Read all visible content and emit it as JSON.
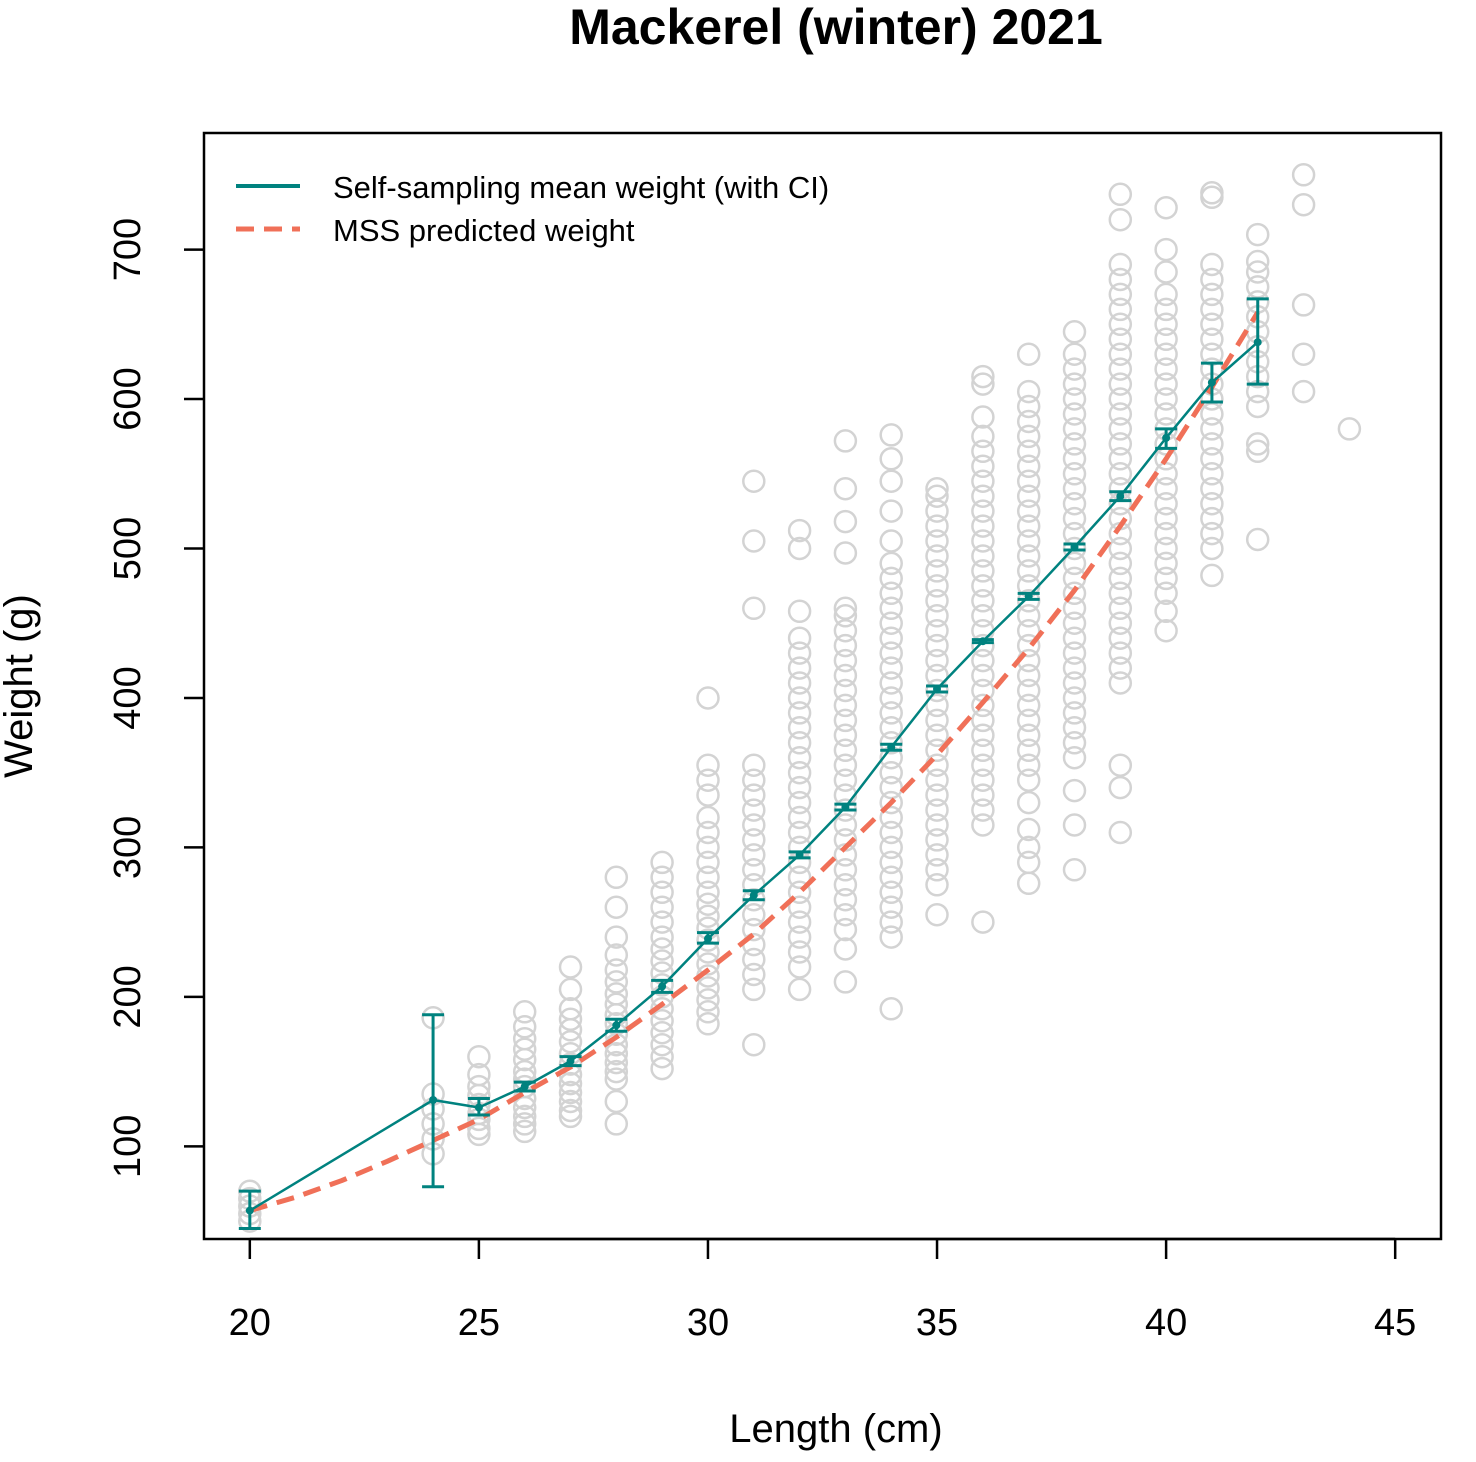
{
  "chart_data": {
    "type": "scatter",
    "title": "Mackerel (winter) 2021",
    "xlabel": "Length (cm)",
    "ylabel": "Weight (g)",
    "xlim": [
      19,
      46
    ],
    "ylim": [
      38,
      778
    ],
    "xticks": [
      20,
      25,
      30,
      35,
      40,
      45
    ],
    "yticks": [
      100,
      200,
      300,
      400,
      500,
      600,
      700
    ],
    "legend": {
      "placement": "top-left",
      "entries": [
        {
          "label": "Self-sampling mean weight (with CI)",
          "style": "solid",
          "color": "#00827F"
        },
        {
          "label": "MSS predicted weight",
          "style": "dashed",
          "color": "#F07058"
        }
      ]
    },
    "colors": {
      "points": "#D3D3D3",
      "mean": "#00827F",
      "predicted": "#F07058"
    },
    "observations": [
      {
        "x": 20,
        "y": [
          50,
          55,
          60,
          65,
          70
        ]
      },
      {
        "x": 24,
        "y": [
          95,
          105,
          115,
          125,
          135,
          186
        ]
      },
      {
        "x": 25,
        "y": [
          108,
          112,
          118,
          122,
          128,
          134,
          140,
          148,
          160
        ]
      },
      {
        "x": 26,
        "y": [
          110,
          115,
          120,
          126,
          132,
          140,
          145,
          150,
          158,
          165,
          172,
          180,
          190
        ]
      },
      {
        "x": 27,
        "y": [
          120,
          124,
          130,
          136,
          142,
          148,
          155,
          162,
          170,
          178,
          185,
          192,
          205,
          220
        ]
      },
      {
        "x": 28,
        "y": [
          115,
          130,
          145,
          150,
          156,
          162,
          168,
          175,
          182,
          188,
          195,
          202,
          210,
          218,
          228,
          240,
          260,
          280
        ]
      },
      {
        "x": 29,
        "y": [
          152,
          160,
          168,
          176,
          184,
          192,
          200,
          208,
          216,
          224,
          232,
          240,
          250,
          260,
          270,
          280,
          290
        ]
      },
      {
        "x": 30,
        "y": [
          182,
          190,
          198,
          206,
          214,
          222,
          230,
          238,
          246,
          254,
          262,
          270,
          280,
          290,
          300,
          310,
          320,
          335,
          345,
          355,
          400
        ]
      },
      {
        "x": 31,
        "y": [
          168,
          205,
          215,
          225,
          235,
          245,
          255,
          265,
          275,
          285,
          295,
          305,
          315,
          325,
          335,
          345,
          355,
          460,
          505,
          545
        ]
      },
      {
        "x": 32,
        "y": [
          205,
          220,
          230,
          240,
          250,
          260,
          270,
          280,
          290,
          300,
          310,
          320,
          330,
          340,
          350,
          360,
          370,
          380,
          390,
          400,
          410,
          420,
          430,
          440,
          458,
          500,
          512
        ]
      },
      {
        "x": 33,
        "y": [
          210,
          232,
          245,
          255,
          265,
          275,
          285,
          295,
          305,
          315,
          325,
          335,
          345,
          355,
          365,
          375,
          385,
          395,
          405,
          415,
          425,
          435,
          445,
          455,
          460,
          497,
          518,
          540,
          572
        ]
      },
      {
        "x": 34,
        "y": [
          192,
          240,
          250,
          260,
          270,
          280,
          290,
          300,
          310,
          320,
          330,
          340,
          350,
          360,
          370,
          380,
          390,
          400,
          410,
          420,
          430,
          440,
          450,
          460,
          470,
          480,
          490,
          505,
          525,
          545,
          560,
          576
        ]
      },
      {
        "x": 35,
        "y": [
          255,
          275,
          285,
          295,
          305,
          315,
          325,
          335,
          345,
          355,
          365,
          375,
          385,
          395,
          405,
          415,
          425,
          435,
          445,
          455,
          465,
          475,
          485,
          495,
          505,
          515,
          525,
          535,
          540
        ]
      },
      {
        "x": 36,
        "y": [
          250,
          315,
          325,
          335,
          345,
          355,
          365,
          375,
          385,
          395,
          405,
          415,
          425,
          435,
          445,
          455,
          465,
          475,
          485,
          495,
          505,
          515,
          525,
          535,
          545,
          555,
          565,
          575,
          588,
          610,
          615
        ]
      },
      {
        "x": 37,
        "y": [
          276,
          290,
          300,
          312,
          330,
          345,
          355,
          365,
          375,
          385,
          395,
          405,
          415,
          425,
          435,
          445,
          455,
          465,
          475,
          485,
          495,
          505,
          515,
          525,
          535,
          545,
          555,
          565,
          575,
          585,
          595,
          605,
          630
        ]
      },
      {
        "x": 38,
        "y": [
          285,
          315,
          338,
          360,
          370,
          380,
          390,
          400,
          410,
          420,
          430,
          440,
          450,
          460,
          470,
          480,
          490,
          500,
          510,
          520,
          530,
          540,
          550,
          560,
          570,
          580,
          590,
          600,
          610,
          620,
          630,
          645
        ]
      },
      {
        "x": 39,
        "y": [
          310,
          340,
          355,
          410,
          420,
          430,
          440,
          450,
          460,
          470,
          480,
          490,
          500,
          510,
          520,
          530,
          540,
          550,
          560,
          570,
          580,
          590,
          600,
          610,
          620,
          630,
          640,
          650,
          660,
          670,
          680,
          690,
          720,
          737
        ]
      },
      {
        "x": 40,
        "y": [
          445,
          458,
          470,
          480,
          490,
          500,
          510,
          520,
          530,
          540,
          550,
          560,
          570,
          580,
          590,
          600,
          610,
          620,
          630,
          640,
          650,
          660,
          670,
          685,
          700,
          728
        ]
      },
      {
        "x": 41,
        "y": [
          482,
          500,
          510,
          520,
          530,
          540,
          550,
          560,
          570,
          580,
          590,
          600,
          610,
          620,
          630,
          640,
          650,
          660,
          670,
          680,
          690,
          735,
          738
        ]
      },
      {
        "x": 42,
        "y": [
          506,
          565,
          570,
          595,
          605,
          615,
          625,
          635,
          645,
          655,
          665,
          675,
          685,
          692,
          710
        ]
      },
      {
        "x": 43,
        "y": [
          605,
          630,
          663,
          730,
          750
        ]
      },
      {
        "x": 44,
        "y": [
          580
        ]
      }
    ],
    "series": [
      {
        "name": "Self-sampling mean weight (with CI)",
        "x": [
          20,
          24,
          25,
          26,
          27,
          28,
          29,
          30,
          31,
          32,
          33,
          34,
          35,
          36,
          37,
          38,
          39,
          40,
          41,
          42
        ],
        "y": [
          57,
          131,
          126,
          140,
          157,
          181,
          207,
          239,
          268,
          295,
          327,
          367,
          406,
          438,
          468,
          501,
          535,
          574,
          611,
          638
        ],
        "ci_low": [
          45,
          73,
          121,
          137,
          154,
          177,
          203,
          236,
          265,
          293,
          325,
          365,
          404,
          437,
          466,
          499,
          532,
          567,
          598,
          610
        ],
        "ci_high": [
          70,
          188,
          132,
          143,
          160,
          185,
          211,
          243,
          271,
          297,
          329,
          369,
          408,
          439,
          470,
          503,
          538,
          580,
          624,
          667
        ]
      },
      {
        "name": "MSS predicted weight",
        "x": [
          20,
          21,
          22,
          23,
          24,
          25,
          26,
          27,
          28,
          29,
          30,
          31,
          32,
          33,
          34,
          35,
          36,
          37,
          38,
          39,
          40,
          41,
          42
        ],
        "y": [
          57,
          66,
          77,
          90,
          104,
          118,
          136,
          153,
          173,
          195,
          218,
          242,
          270,
          300,
          330,
          362,
          397,
          433,
          472,
          515,
          560,
          608,
          658
        ]
      }
    ]
  }
}
